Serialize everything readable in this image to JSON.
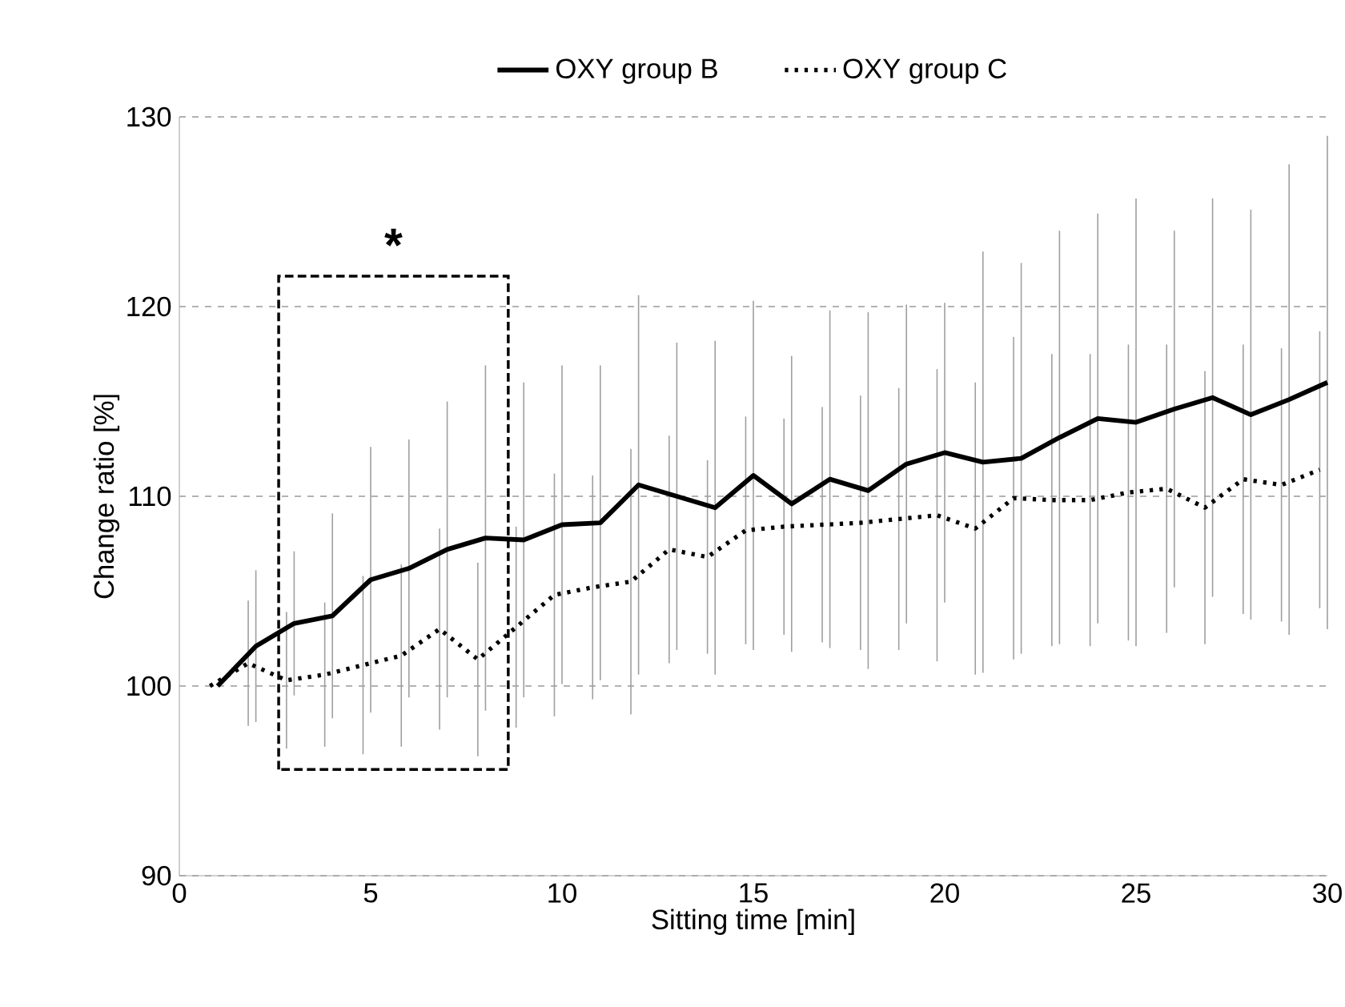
{
  "chart_data": {
    "type": "line",
    "xlabel": "Sitting time [min]",
    "ylabel": "Change ratio [%]",
    "xlim": [
      0,
      30
    ],
    "xticks": [
      0,
      5,
      10,
      15,
      20,
      25,
      30
    ],
    "ylim": [
      90,
      130
    ],
    "yticks": [
      90,
      100,
      110,
      120,
      130
    ],
    "grid": "y",
    "legend": "top",
    "marker": "none",
    "annotations": [
      "*"
    ],
    "series": [
      {
        "name": "OXY group B",
        "color": "#000000",
        "line_style": "solid",
        "x": [
          1,
          2,
          3,
          4,
          5,
          6,
          7,
          8,
          9,
          10,
          11,
          12,
          13,
          14,
          15,
          16,
          17,
          18,
          19,
          20,
          21,
          22,
          23,
          24,
          25,
          26,
          27,
          28,
          29,
          30
        ],
        "values": [
          100,
          102.1,
          103.3,
          103.7,
          105.6,
          106.2,
          107.2,
          107.8,
          107.7,
          108.5,
          108.6,
          110.6,
          110.0,
          109.4,
          111.1,
          109.6,
          110.9,
          110.3,
          111.7,
          112.3,
          111.8,
          112.0,
          113.1,
          114.1,
          113.9,
          114.6,
          115.2,
          114.3,
          115.1,
          116.0
        ],
        "errors": [
          null,
          4.0,
          3.8,
          5.4,
          7.0,
          6.8,
          7.8,
          9.1,
          8.3,
          8.4,
          8.3,
          10.0,
          8.1,
          8.8,
          9.2,
          7.8,
          8.9,
          9.4,
          8.4,
          7.9,
          11.1,
          10.3,
          10.9,
          10.8,
          11.8,
          9.4,
          10.5,
          10.8,
          12.4,
          13.0
        ]
      },
      {
        "name": "OXY group C",
        "color": "#000000",
        "line_style": "dotted",
        "x": [
          0.8,
          1.8,
          2.8,
          3.8,
          4.8,
          5.8,
          6.8,
          7.8,
          8.8,
          9.8,
          10.8,
          11.8,
          12.8,
          13.8,
          14.8,
          15.8,
          16.8,
          17.8,
          18.8,
          19.8,
          20.8,
          21.8,
          22.8,
          23.8,
          24.8,
          25.8,
          26.8,
          27.8,
          28.8,
          29.8
        ],
        "values": [
          100,
          101.2,
          100.3,
          100.6,
          101.1,
          101.6,
          103.0,
          101.4,
          103.1,
          104.8,
          105.2,
          105.5,
          107.2,
          106.8,
          108.2,
          108.4,
          108.5,
          108.6,
          108.8,
          109.0,
          108.3,
          109.9,
          109.8,
          109.8,
          110.2,
          110.4,
          109.4,
          110.9,
          110.6,
          111.4
        ],
        "errors": [
          null,
          3.3,
          3.6,
          3.8,
          4.7,
          4.8,
          5.3,
          5.1,
          5.3,
          6.4,
          5.9,
          7.0,
          6.0,
          5.1,
          6.0,
          5.7,
          6.2,
          6.7,
          6.9,
          7.7,
          7.7,
          8.5,
          7.7,
          7.7,
          7.8,
          7.6,
          7.2,
          7.1,
          7.2,
          7.3
        ]
      }
    ]
  }
}
